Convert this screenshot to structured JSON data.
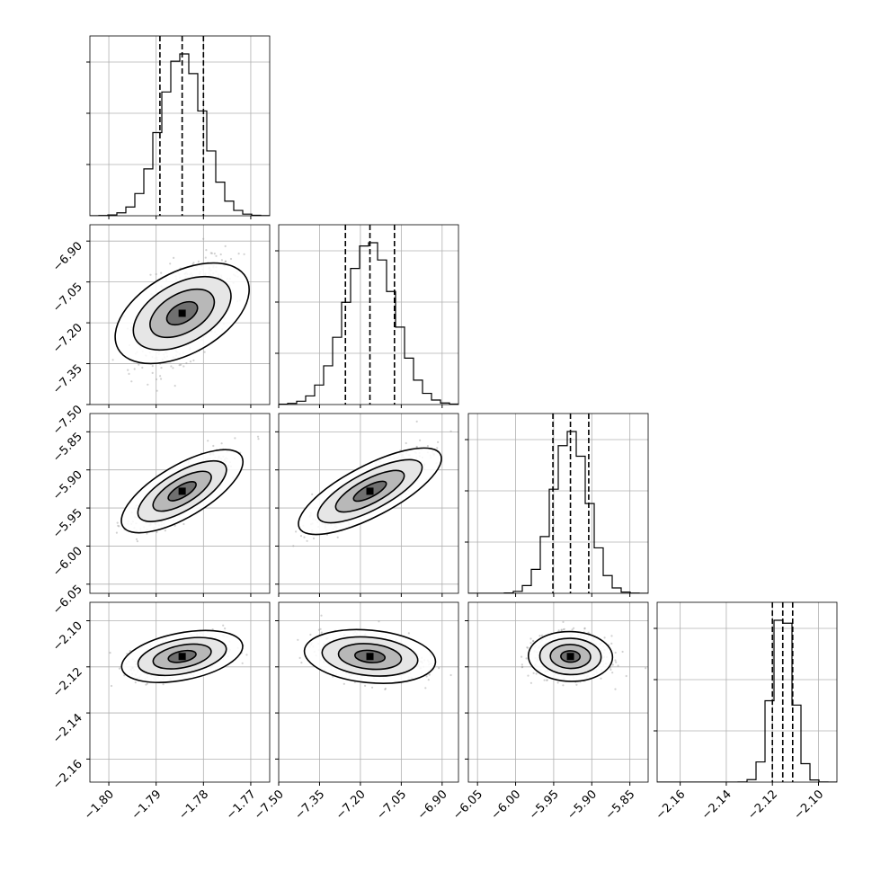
{
  "chart_data": {
    "type": "corner",
    "grid": true,
    "parameters": [
      {
        "range": [
          -1.804,
          -1.766
        ],
        "ticks": [
          "−1.80",
          "−1.79",
          "−1.78",
          "−1.77"
        ],
        "tick_values": [
          -1.8,
          -1.79,
          -1.78,
          -1.77
        ],
        "quantiles": [
          -1.7892,
          -1.7845,
          -1.78
        ],
        "mean": -1.7845,
        "sigma": 0.0045,
        "hist_peak": 1.0
      },
      {
        "range": [
          -7.5,
          -6.84
        ],
        "ticks": [
          "−7.50",
          "−7.35",
          "−7.20",
          "−7.05",
          "−6.90"
        ],
        "tick_values": [
          -7.5,
          -7.35,
          -7.2,
          -7.05,
          -6.9
        ],
        "quantiles": [
          -7.255,
          -7.165,
          -7.075
        ],
        "mean": -7.165,
        "sigma": 0.09,
        "hist_peak": 1.0
      },
      {
        "range": [
          -6.062,
          -5.826
        ],
        "ticks": [
          "−6.05",
          "−6.00",
          "−5.95",
          "−5.90",
          "−5.85"
        ],
        "tick_values": [
          -6.05,
          -6.0,
          -5.95,
          -5.9,
          -5.85
        ],
        "quantiles": [
          -5.951,
          -5.928,
          -5.904
        ],
        "mean": -5.928,
        "sigma": 0.023,
        "hist_peak": 1.0
      },
      {
        "range": [
          -2.17,
          -2.092
        ],
        "ticks": [
          "−2.16",
          "−2.14",
          "−2.12",
          "−2.10"
        ],
        "tick_values": [
          -2.16,
          -2.14,
          -2.12,
          -2.1
        ],
        "quantiles": [
          -2.12,
          -2.1155,
          -2.1112
        ],
        "mean": -2.1155,
        "sigma": 0.0045,
        "hist_peak": 1.0
      }
    ],
    "correlations": {
      "1-0": 0.55,
      "2-0": 0.82,
      "2-1": 0.83,
      "3-0": 0.45,
      "3-1": -0.25,
      "3-2": -0.05
    }
  }
}
